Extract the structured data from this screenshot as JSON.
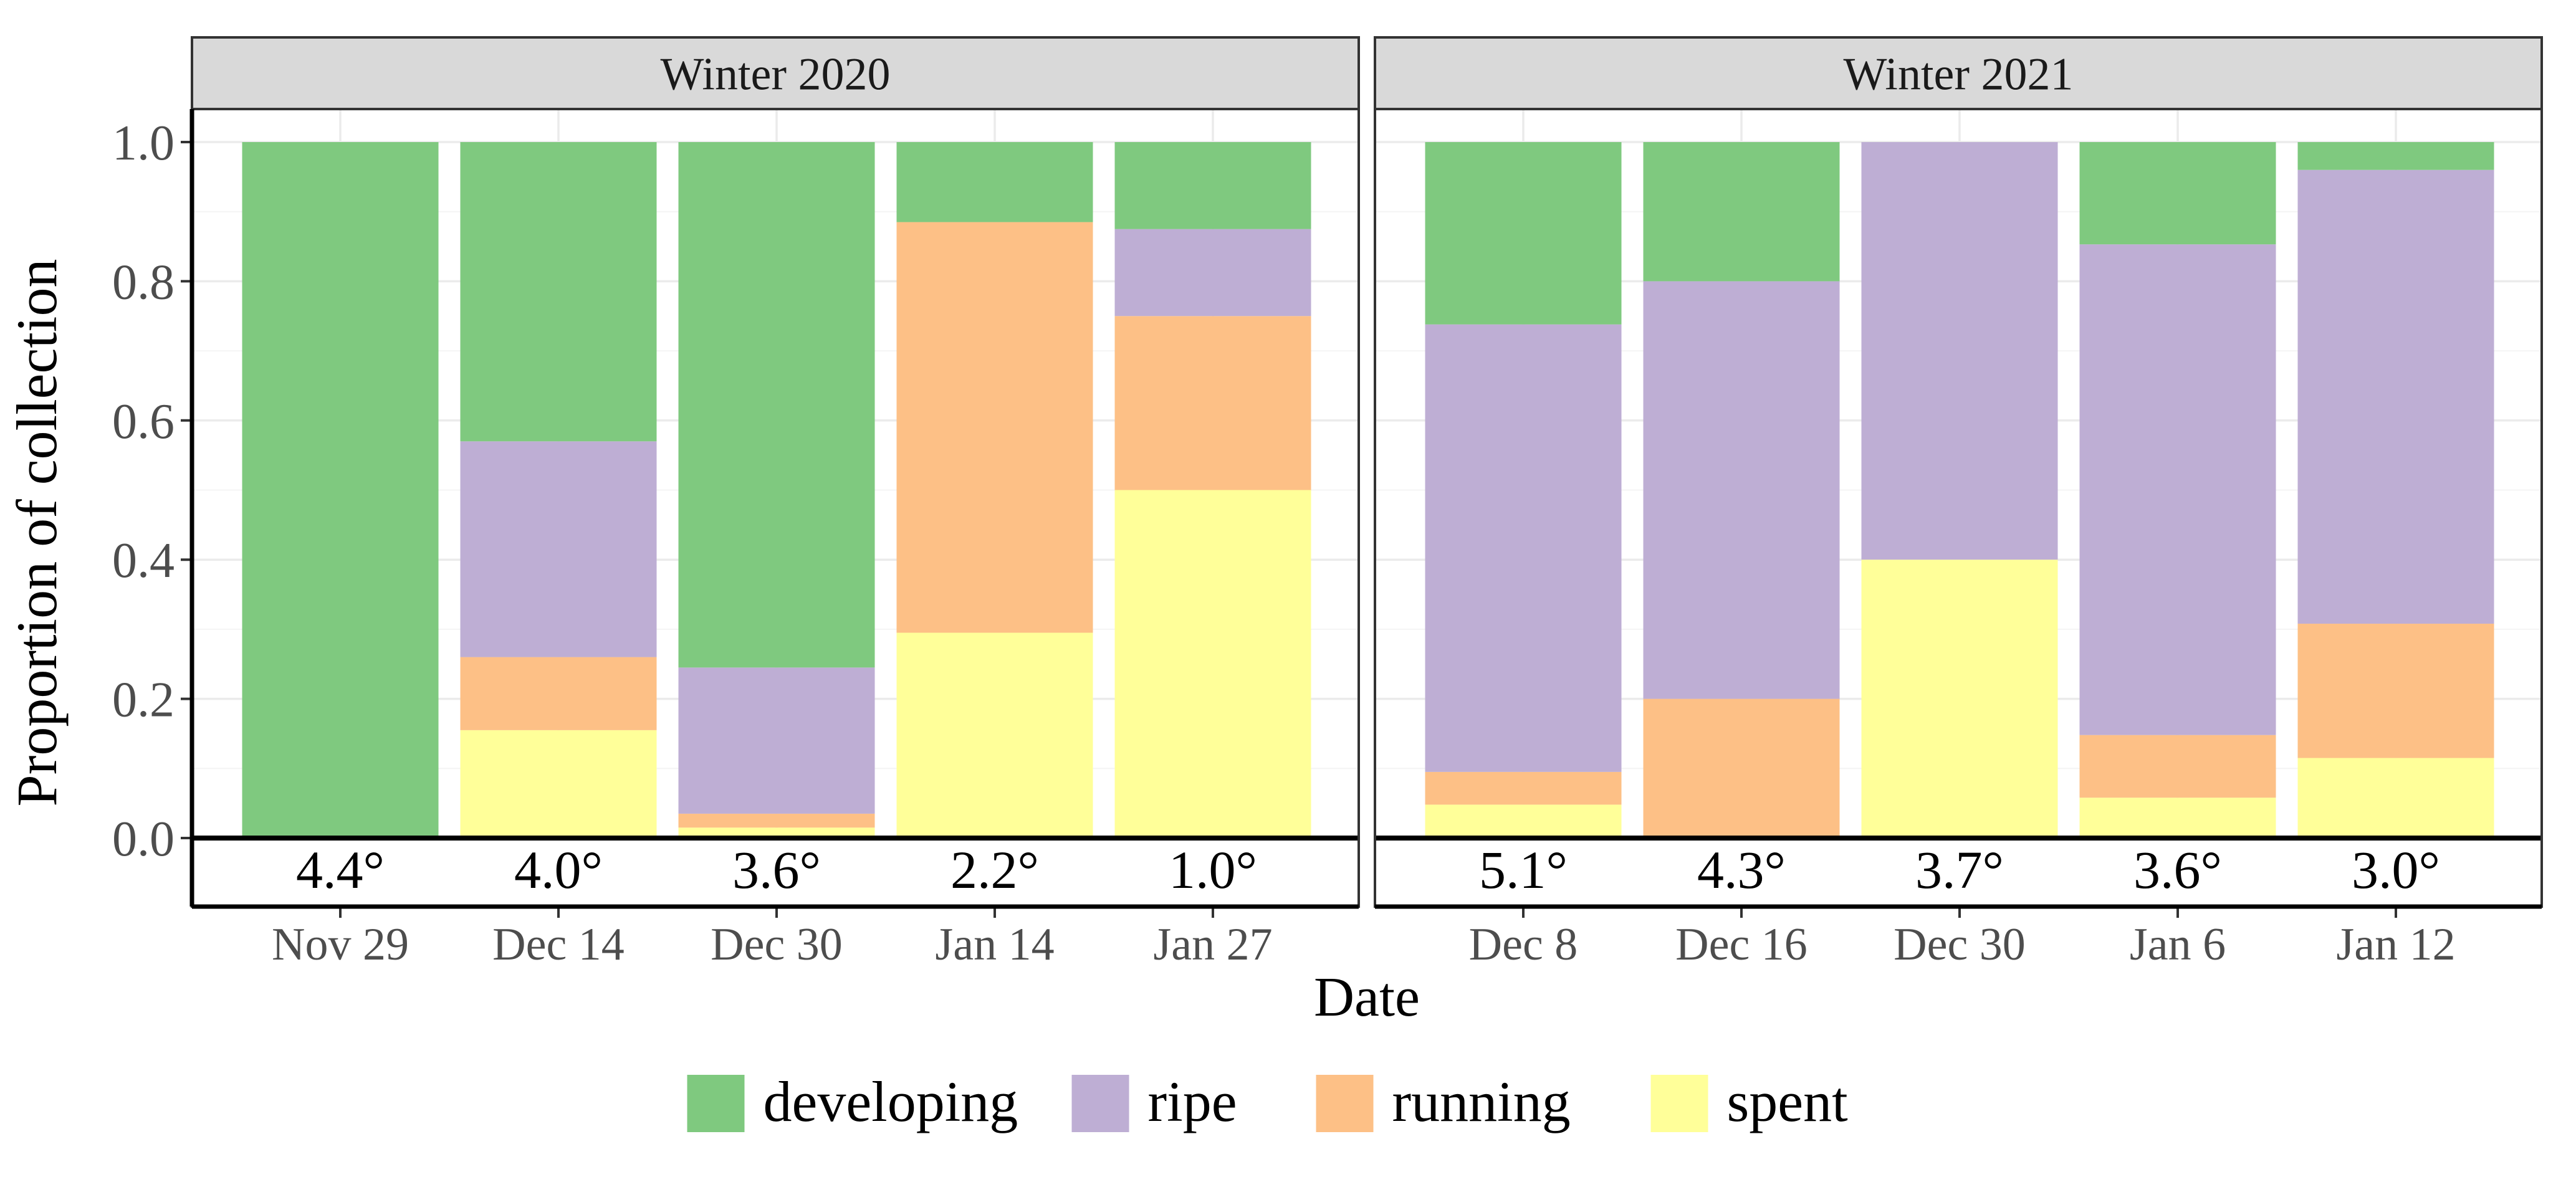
{
  "chart_data": {
    "type": "bar",
    "stacked": true,
    "faceted": true,
    "ylabel": "Proportion of collection",
    "xlabel": "Date",
    "ylim": [
      0,
      1
    ],
    "yticks": [
      "0.0",
      "0.2",
      "0.4",
      "0.6",
      "0.8",
      "1.0"
    ],
    "grid": true,
    "legend_position": "bottom",
    "series_names": [
      "developing",
      "ripe",
      "running",
      "spent"
    ],
    "series_colors": {
      "developing": "#7fc97f",
      "ripe": "#beaed4",
      "running": "#fdc086",
      "spent": "#ffff99"
    },
    "panels": [
      {
        "title": "Winter 2020",
        "categories": [
          "Nov 29",
          "Dec 14",
          "Dec 30",
          "Jan 14",
          "Jan 27"
        ],
        "temperatures": [
          "4.4°",
          "4.0°",
          "3.6°",
          "2.2°",
          "1.0°"
        ],
        "series": [
          {
            "name": "spent",
            "values": [
              0.0,
              0.155,
              0.015,
              0.295,
              0.5
            ]
          },
          {
            "name": "running",
            "values": [
              0.0,
              0.105,
              0.02,
              0.59,
              0.25
            ]
          },
          {
            "name": "ripe",
            "values": [
              0.0,
              0.31,
              0.21,
              0.0,
              0.125
            ]
          },
          {
            "name": "developing",
            "values": [
              1.0,
              0.43,
              0.755,
              0.115,
              0.125
            ]
          }
        ]
      },
      {
        "title": "Winter 2021",
        "categories": [
          "Dec 8",
          "Dec 16",
          "Dec 30",
          "Jan 6",
          "Jan 12"
        ],
        "temperatures": [
          "5.1°",
          "4.3°",
          "3.7°",
          "3.6°",
          "3.0°"
        ],
        "series": [
          {
            "name": "spent",
            "values": [
              0.048,
              0.0,
              0.4,
              0.058,
              0.115
            ]
          },
          {
            "name": "running",
            "values": [
              0.047,
              0.2,
              0.0,
              0.09,
              0.193
            ]
          },
          {
            "name": "ripe",
            "values": [
              0.643,
              0.6,
              0.6,
              0.705,
              0.652
            ]
          },
          {
            "name": "developing",
            "values": [
              0.262,
              0.2,
              0.0,
              0.147,
              0.04
            ]
          }
        ]
      }
    ]
  }
}
